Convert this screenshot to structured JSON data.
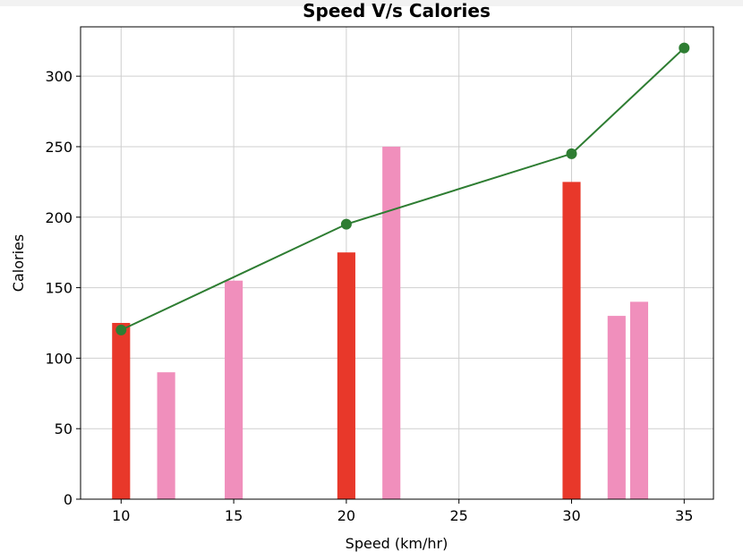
{
  "chart_data": {
    "type": "bar",
    "title": "Speed V/s Calories",
    "xlabel": "Speed (km/hr)",
    "ylabel": "Calories",
    "xlim": [
      8.2,
      36.3
    ],
    "ylim": [
      0,
      335
    ],
    "xticks": [
      10,
      15,
      20,
      25,
      30,
      35
    ],
    "yticks": [
      0,
      50,
      100,
      150,
      200,
      250,
      300
    ],
    "grid": true,
    "bar_width": 0.8,
    "series": [
      {
        "kind": "bar",
        "color": "#e8382a",
        "x": [
          10,
          20,
          30
        ],
        "values": [
          125,
          175,
          225
        ]
      },
      {
        "kind": "bar",
        "color": "#f08fbc",
        "x": [
          12,
          15,
          22,
          32,
          33
        ],
        "values": [
          90,
          155,
          250,
          130,
          140
        ]
      },
      {
        "kind": "line",
        "color": "#2e7d32",
        "marker": "circle",
        "x": [
          10,
          20,
          30,
          35
        ],
        "values": [
          120,
          195,
          245,
          320
        ]
      }
    ]
  }
}
